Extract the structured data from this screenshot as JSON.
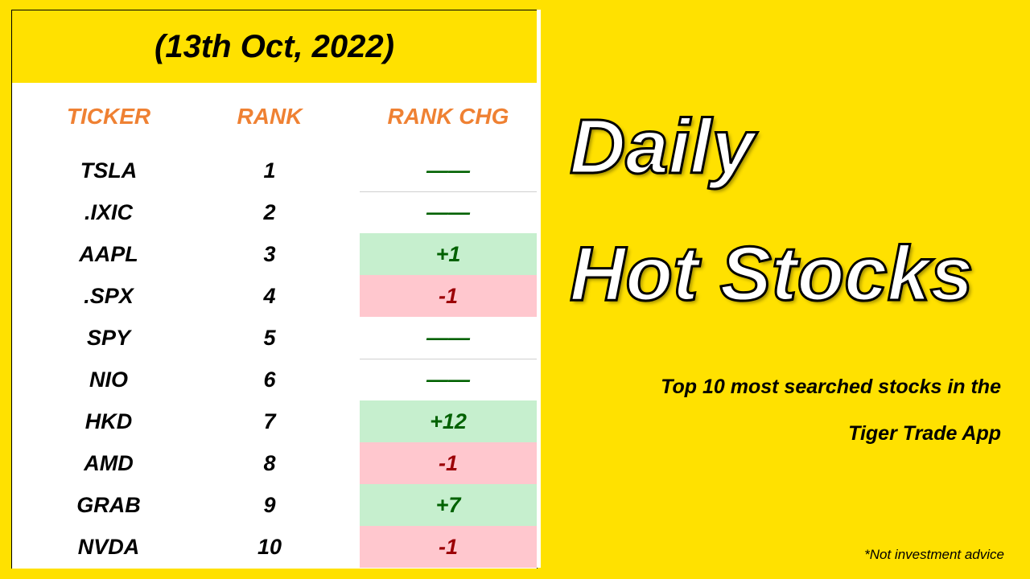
{
  "table": {
    "date": "(13th Oct, 2022)",
    "headers": [
      "TICKER",
      "RANK",
      "RANK CHG"
    ],
    "rows": [
      {
        "ticker": "TSLA",
        "rank": "1",
        "change": "——",
        "direction": "flat"
      },
      {
        "ticker": ".IXIC",
        "rank": "2",
        "change": "——",
        "direction": "flat"
      },
      {
        "ticker": "AAPL",
        "rank": "3",
        "change": "+1",
        "direction": "up"
      },
      {
        "ticker": ".SPX",
        "rank": "4",
        "change": "-1",
        "direction": "down"
      },
      {
        "ticker": "SPY",
        "rank": "5",
        "change": "——",
        "direction": "flat"
      },
      {
        "ticker": "NIO",
        "rank": "6",
        "change": "——",
        "direction": "flat"
      },
      {
        "ticker": "HKD",
        "rank": "7",
        "change": "+12",
        "direction": "up"
      },
      {
        "ticker": "AMD",
        "rank": "8",
        "change": "-1",
        "direction": "down"
      },
      {
        "ticker": "GRAB",
        "rank": "9",
        "change": "+7",
        "direction": "up"
      },
      {
        "ticker": "NVDA",
        "rank": "10",
        "change": "-1",
        "direction": "down"
      }
    ]
  },
  "title": {
    "line1": "Daily",
    "line2": "Hot Stocks"
  },
  "subtitle": {
    "line1": "Top 10 most searched  stocks in the",
    "line2": "Tiger Trade App"
  },
  "disclaimer": "*Not investment advice",
  "colors": {
    "background": "#ffe100",
    "header_text": "#ef8133",
    "up_bg": "#c6efce",
    "up_text": "#006100",
    "down_bg": "#ffc7ce",
    "down_text": "#9c0006"
  }
}
